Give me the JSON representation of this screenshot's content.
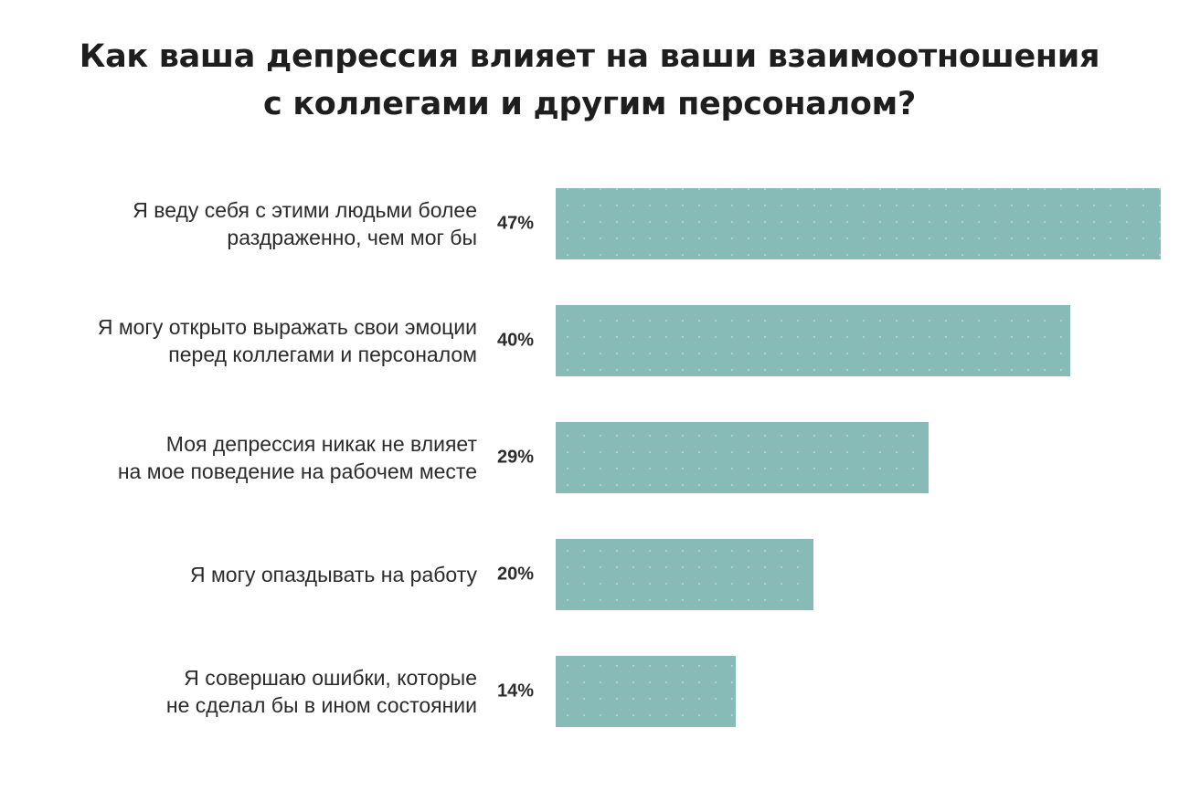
{
  "title": {
    "line1": "Как ваша депрессия влияет на ваши взаимоотношения",
    "line2": "с коллегами и другим персоналом?"
  },
  "colors": {
    "bar": "#86bbb8",
    "dot": "#b4d6d3",
    "text": "#2b2b2b"
  },
  "chart_data": {
    "type": "bar",
    "orientation": "horizontal",
    "title": "Как ваша депрессия влияет на ваши взаимоотношения с коллегами и другим персоналом?",
    "categories": [
      [
        "Я веду себя с этими людьми более",
        "раздраженно, чем мог бы"
      ],
      [
        "Я могу открыто выражать свои эмоции",
        "перед коллегами и персоналом"
      ],
      [
        "Моя депрессия никак не влияет",
        "на мое поведение на рабочем месте"
      ],
      [
        "Я могу опаздывать на работу"
      ],
      [
        "Я совершаю ошибки, которые",
        "не сделал бы в ином состоянии"
      ]
    ],
    "values": [
      47,
      40,
      29,
      20,
      14
    ],
    "value_labels": [
      "47%",
      "40%",
      "29%",
      "20%",
      "14%"
    ],
    "unit": "%",
    "xlim": [
      0,
      47
    ],
    "grid": false,
    "legend": "none"
  }
}
